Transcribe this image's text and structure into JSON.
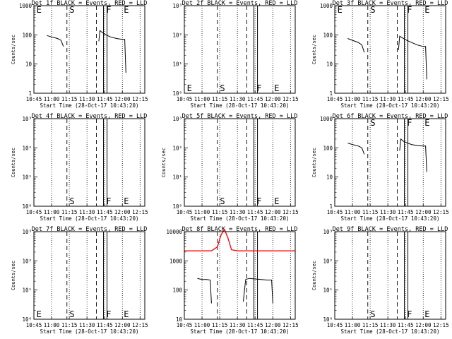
{
  "x_axis": {
    "xlim": [
      "10:45",
      "12:19"
    ],
    "tick_labels": [
      "10:45",
      "11:00",
      "11:15",
      "11:30",
      "11:45",
      "12:00",
      "12:15"
    ],
    "xlabel": "Start Time (28-Oct-17 10:43:20)"
  },
  "markers": {
    "dotted_x": [
      "11:00",
      "11:15",
      "11:30",
      "11:45",
      "12:00",
      "12:15"
    ],
    "dashed_x": [
      "11:13",
      "11:38"
    ],
    "solid_x": [
      "11:44",
      "11:47"
    ],
    "letters": [
      {
        "text": "E",
        "x": "10:46"
      },
      {
        "text": "S",
        "x": "11:14"
      },
      {
        "text": "F",
        "x": "11:45"
      },
      {
        "text": "E",
        "x": "12:00"
      }
    ]
  },
  "colors": {
    "events": "#000000",
    "lld": "#ff0000"
  },
  "chart_data": [
    {
      "type": "line",
      "title": "Det 1f BLACK = Events, RED = LLD",
      "ylabel": "Counts/sec",
      "ylog": true,
      "ylim": [
        1,
        1000
      ],
      "ytick_labels": [
        "1",
        "10",
        "100",
        "1000"
      ],
      "letters_pos": "top",
      "show_letters": [
        0,
        1,
        2,
        3
      ],
      "series": [
        {
          "color": "#000000",
          "x": [
            "10:56",
            "11:00",
            "11:05",
            "11:08",
            "11:10",
            "11:10"
          ],
          "values": [
            95,
            85,
            75,
            65,
            40,
            40
          ]
        },
        {
          "color": "#000000",
          "x": [
            "11:40",
            "11:41",
            "11:43",
            "11:46",
            "11:50",
            "11:55",
            "12:00",
            "12:02",
            "12:03"
          ],
          "values": [
            60,
            140,
            120,
            100,
            85,
            75,
            70,
            70,
            5
          ]
        }
      ]
    },
    {
      "type": "line",
      "title": "Det 2f BLACK = Events, RED = LLD",
      "ylabel": "",
      "ylog": true,
      "ylim": [
        1,
        1000
      ],
      "ytick_labels": [
        "10⁰",
        "10¹",
        "10²",
        "10³"
      ],
      "letters_pos": "bottom",
      "show_letters": [
        0,
        1,
        2,
        3
      ],
      "series": []
    },
    {
      "type": "line",
      "title": "Det 3f BLACK = Events, RED = LLD",
      "ylabel": "Counts/sec",
      "ylog": true,
      "ylim": [
        1,
        1000
      ],
      "ytick_labels": [
        "1",
        "10",
        "100",
        "1000"
      ],
      "letters_pos": "top",
      "show_letters": [
        0,
        1,
        2,
        3
      ],
      "series": [
        {
          "color": "#000000",
          "x": [
            "10:56",
            "11:00",
            "11:05",
            "11:08",
            "11:10"
          ],
          "values": [
            75,
            65,
            55,
            45,
            25
          ]
        },
        {
          "color": "#000000",
          "x": [
            "11:39",
            "11:40",
            "11:42",
            "11:46",
            "11:50",
            "11:55",
            "12:00",
            "12:02",
            "12:03"
          ],
          "values": [
            30,
            90,
            80,
            65,
            55,
            45,
            40,
            40,
            3
          ]
        }
      ]
    },
    {
      "type": "line",
      "title": "Det 4f BLACK = Events, RED = LLD",
      "ylabel": "Counts/sec",
      "ylog": true,
      "ylim": [
        1,
        1000
      ],
      "ytick_labels": [
        "10⁰",
        "10¹",
        "10²",
        "10³"
      ],
      "letters_pos": "bottom",
      "show_letters": [
        1,
        2,
        3
      ],
      "series": []
    },
    {
      "type": "line",
      "title": "Det 5f BLACK = Events, RED = LLD",
      "ylabel": "Counts/sec",
      "ylog": true,
      "ylim": [
        1,
        1000
      ],
      "ytick_labels": [
        "10⁰",
        "10¹",
        "10²",
        "10³"
      ],
      "letters_pos": "bottom",
      "show_letters": [
        1,
        2,
        3
      ],
      "series": []
    },
    {
      "type": "line",
      "title": "Det 6f BLACK = Events, RED = LLD",
      "ylabel": "Counts/sec",
      "ylog": true,
      "ylim": [
        1,
        1000
      ],
      "ytick_labels": [
        "1",
        "10",
        "100",
        "1000"
      ],
      "letters_pos": "top",
      "show_letters": [
        1,
        2,
        3
      ],
      "series": [
        {
          "color": "#000000",
          "x": [
            "10:56",
            "11:00",
            "11:05",
            "11:08",
            "11:10",
            "11:10"
          ],
          "values": [
            145,
            130,
            115,
            100,
            60,
            60
          ]
        },
        {
          "color": "#000000",
          "x": [
            "11:40",
            "11:41",
            "11:43",
            "11:46",
            "11:50",
            "11:55",
            "12:00",
            "12:02",
            "12:03"
          ],
          "values": [
            80,
            200,
            170,
            150,
            130,
            120,
            115,
            115,
            15
          ]
        }
      ]
    },
    {
      "type": "line",
      "title": "Det 7f BLACK = Events, RED = LLD",
      "ylabel": "Counts/sec",
      "ylog": true,
      "ylim": [
        1,
        1000
      ],
      "ytick_labels": [
        "10⁰",
        "10¹",
        "10²",
        "10³"
      ],
      "letters_pos": "bottom",
      "show_letters": [
        0,
        1,
        2,
        3
      ],
      "series": []
    },
    {
      "type": "line",
      "title": "Det 8f BLACK = Events, RED = LLD",
      "ylabel": "",
      "ylog": true,
      "ylim": [
        10,
        10000
      ],
      "ytick_labels": [
        "10",
        "100",
        "1000",
        "10000"
      ],
      "letters_pos": "none",
      "show_letters": [],
      "series": [
        {
          "color": "#ff0000",
          "x": [
            "10:45",
            "10:52",
            "11:00",
            "11:08",
            "11:13",
            "11:16",
            "11:19",
            "11:22",
            "11:25",
            "11:30",
            "11:45",
            "12:00",
            "12:19"
          ],
          "values": [
            2200,
            2200,
            2200,
            2200,
            3000,
            7500,
            12000,
            6000,
            2400,
            2200,
            2200,
            2200,
            2200
          ]
        },
        {
          "color": "#000000",
          "x": [
            "10:56",
            "11:00",
            "11:04",
            "11:07",
            "11:08"
          ],
          "values": [
            250,
            230,
            230,
            220,
            35
          ]
        },
        {
          "color": "#000000",
          "x": [
            "11:35",
            "11:36",
            "11:37",
            "11:40",
            "11:45",
            "11:50",
            "11:55",
            "11:59",
            "12:00"
          ],
          "values": [
            40,
            100,
            230,
            250,
            240,
            230,
            220,
            220,
            35
          ]
        }
      ]
    },
    {
      "type": "line",
      "title": "Det 9f BLACK = Events, RED = LLD",
      "ylabel": "Counts/sec",
      "ylog": true,
      "ylim": [
        1,
        1000
      ],
      "ytick_labels": [
        "10⁰",
        "10¹",
        "10²",
        "10³"
      ],
      "letters_pos": "bottom",
      "show_letters": [
        1,
        2,
        3
      ],
      "series": []
    }
  ]
}
